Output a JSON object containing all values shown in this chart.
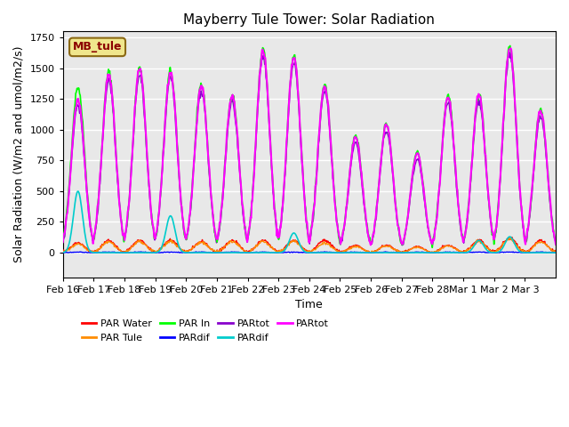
{
  "title": "Mayberry Tule Tower: Solar Radiation",
  "ylabel": "Solar Radiation (W/m2 and umol/m2/s)",
  "xlabel": "Time",
  "ylim": [
    -200,
    1800
  ],
  "background_color": "#e8e8e8",
  "grid_color": "white",
  "legend_label": "MB_tule",
  "legend_box_color": "#f0e68c",
  "legend_box_edge": "#8b6914",
  "date_labels": [
    "Feb 16",
    "Feb 17",
    "Feb 18",
    "Feb 19",
    "Feb 20",
    "Feb 21",
    "Feb 22",
    "Feb 23",
    "Feb 24",
    "Feb 25",
    "Feb 26",
    "Feb 27",
    "Feb 28",
    "Mar 1",
    "Mar 2",
    "Mar 3"
  ],
  "n_days": 16,
  "series": [
    {
      "name": "PAR Water",
      "color": "#ff0000",
      "lw": 1.0
    },
    {
      "name": "PAR Tule",
      "color": "#ff8c00",
      "lw": 1.0
    },
    {
      "name": "PAR In",
      "color": "#00ff00",
      "lw": 1.2
    },
    {
      "name": "PARdif",
      "color": "#0000ff",
      "lw": 1.0
    },
    {
      "name": "PARtot",
      "color": "#8800cc",
      "lw": 1.0
    },
    {
      "name": "PARdif",
      "color": "#00cccc",
      "lw": 1.2
    },
    {
      "name": "PARtot",
      "color": "#ff00ff",
      "lw": 1.5
    }
  ],
  "par_in_peaks": [
    1350,
    1470,
    1500,
    1480,
    1370,
    1290,
    1650,
    1600,
    1370,
    960,
    1050,
    820,
    1280,
    1290,
    1680,
    1170
  ],
  "par_tot_m_peaks": [
    1250,
    1450,
    1490,
    1470,
    1360,
    1280,
    1640,
    1590,
    1360,
    940,
    1040,
    810,
    1270,
    1280,
    1670,
    1160
  ],
  "par_tot_p_peaks": [
    1200,
    1400,
    1440,
    1420,
    1310,
    1230,
    1590,
    1540,
    1310,
    890,
    990,
    760,
    1220,
    1230,
    1620,
    1110
  ],
  "par_water_peaks": [
    80,
    100,
    100,
    100,
    90,
    100,
    100,
    100,
    100,
    60,
    60,
    50,
    60,
    100,
    120,
    100
  ],
  "par_tule_peaks": [
    70,
    90,
    90,
    90,
    85,
    90,
    90,
    90,
    80,
    50,
    55,
    45,
    55,
    90,
    110,
    90
  ],
  "par_dif_b_peaks": [
    5,
    5,
    5,
    5,
    5,
    5,
    5,
    5,
    5,
    5,
    5,
    5,
    5,
    5,
    5,
    5
  ],
  "cyan_days": {
    "0": 500,
    "3": 300,
    "7": 160,
    "13": 100,
    "14": 130
  }
}
